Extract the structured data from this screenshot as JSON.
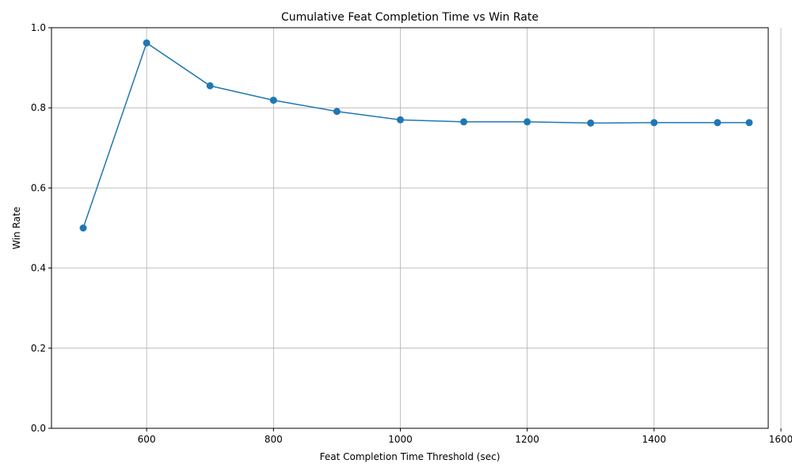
{
  "chart_data": {
    "type": "line",
    "title": "Cumulative Feat Completion Time vs Win Rate",
    "xlabel": "Feat Completion Time Threshold (sec)",
    "ylabel": "Win Rate",
    "xlim": [
      450,
      1580
    ],
    "ylim": [
      0.0,
      1.0
    ],
    "xticks": [
      600,
      800,
      1000,
      1200,
      1400,
      1600
    ],
    "yticks": [
      0.0,
      0.2,
      0.4,
      0.6,
      0.8,
      1.0
    ],
    "xtick_labels": [
      "600",
      "800",
      "1000",
      "1200",
      "1400",
      "1600"
    ],
    "ytick_labels": [
      "0.0",
      "0.2",
      "0.4",
      "0.6",
      "0.8",
      "1.0"
    ],
    "grid": true,
    "line_color": "#1f77b4",
    "marker": "circle",
    "x": [
      500,
      600,
      700,
      800,
      900,
      1000,
      1100,
      1200,
      1300,
      1400,
      1500,
      1550
    ],
    "y": [
      0.5,
      0.962,
      0.855,
      0.819,
      0.791,
      0.77,
      0.765,
      0.765,
      0.762,
      0.763,
      0.763,
      0.763
    ]
  }
}
